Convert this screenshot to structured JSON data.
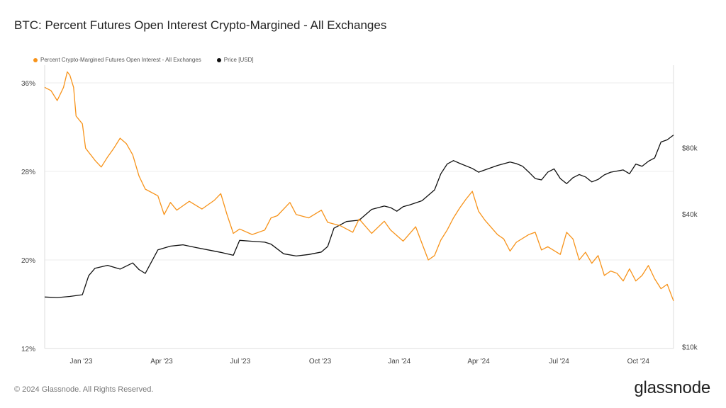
{
  "title": "BTC: Percent Futures Open Interest Crypto-Margined - All Exchanges",
  "footer": "© 2024 Glassnode. All Rights Reserved.",
  "brand": "glassnode",
  "colors": {
    "series_oi": "#f7931a",
    "series_price": "#111111",
    "grid": "#eeeeee",
    "axis": "#dddddd"
  },
  "chart_data": {
    "type": "line",
    "legend": [
      "Percent Crypto-Margined Futures Open Interest - All Exchanges",
      "Price [USD]"
    ],
    "legend_position": "top-left",
    "x_ticks": [
      "Jan '23",
      "Apr '23",
      "Jul '23",
      "Oct '23",
      "Jan '24",
      "Apr '24",
      "Jul '24",
      "Oct '24"
    ],
    "x_range": [
      "Dec '22",
      "Nov '24"
    ],
    "y_left": {
      "ticks": [
        "12%",
        "20%",
        "28%",
        "36%"
      ],
      "min": 12,
      "max": 37.6
    },
    "y_right": {
      "ticks": [
        "$10k",
        "$40k",
        "$80k"
      ],
      "scale": "log",
      "min": 9800,
      "max": 190000
    },
    "grid": true,
    "series": [
      {
        "name": "Percent Crypto-Margined Futures Open Interest - All Exchanges",
        "axis": "left",
        "points": [
          [
            0,
            35.6
          ],
          [
            0.01,
            35.3
          ],
          [
            0.02,
            34.4
          ],
          [
            0.03,
            35.6
          ],
          [
            0.036,
            37.0
          ],
          [
            0.04,
            36.7
          ],
          [
            0.046,
            35.6
          ],
          [
            0.05,
            33.0
          ],
          [
            0.06,
            32.3
          ],
          [
            0.065,
            30.1
          ],
          [
            0.08,
            29.0
          ],
          [
            0.09,
            28.4
          ],
          [
            0.1,
            29.3
          ],
          [
            0.11,
            30.1
          ],
          [
            0.12,
            31.0
          ],
          [
            0.13,
            30.5
          ],
          [
            0.14,
            29.5
          ],
          [
            0.15,
            27.6
          ],
          [
            0.16,
            26.4
          ],
          [
            0.18,
            25.8
          ],
          [
            0.19,
            24.1
          ],
          [
            0.2,
            25.2
          ],
          [
            0.21,
            24.5
          ],
          [
            0.23,
            25.3
          ],
          [
            0.25,
            24.6
          ],
          [
            0.27,
            25.4
          ],
          [
            0.28,
            26.0
          ],
          [
            0.29,
            24.1
          ],
          [
            0.3,
            22.4
          ],
          [
            0.31,
            22.8
          ],
          [
            0.33,
            22.3
          ],
          [
            0.35,
            22.7
          ],
          [
            0.36,
            23.8
          ],
          [
            0.37,
            24.0
          ],
          [
            0.39,
            25.2
          ],
          [
            0.4,
            24.1
          ],
          [
            0.42,
            23.8
          ],
          [
            0.44,
            24.5
          ],
          [
            0.45,
            23.4
          ],
          [
            0.47,
            23.1
          ],
          [
            0.49,
            22.5
          ],
          [
            0.5,
            23.7
          ],
          [
            0.52,
            22.4
          ],
          [
            0.54,
            23.5
          ],
          [
            0.55,
            22.7
          ],
          [
            0.57,
            21.7
          ],
          [
            0.59,
            23.0
          ],
          [
            0.6,
            21.5
          ],
          [
            0.61,
            20.0
          ],
          [
            0.62,
            20.4
          ],
          [
            0.63,
            21.8
          ],
          [
            0.64,
            22.7
          ],
          [
            0.65,
            23.8
          ],
          [
            0.66,
            24.7
          ],
          [
            0.67,
            25.5
          ],
          [
            0.68,
            26.2
          ],
          [
            0.69,
            24.4
          ],
          [
            0.7,
            23.6
          ],
          [
            0.72,
            22.3
          ],
          [
            0.73,
            21.9
          ],
          [
            0.74,
            20.8
          ],
          [
            0.75,
            21.6
          ],
          [
            0.77,
            22.3
          ],
          [
            0.78,
            22.5
          ],
          [
            0.79,
            20.9
          ],
          [
            0.8,
            21.2
          ],
          [
            0.82,
            20.5
          ],
          [
            0.83,
            22.5
          ],
          [
            0.84,
            21.9
          ],
          [
            0.85,
            20.0
          ],
          [
            0.86,
            20.7
          ],
          [
            0.87,
            19.7
          ],
          [
            0.88,
            20.4
          ],
          [
            0.89,
            18.6
          ],
          [
            0.9,
            19.0
          ],
          [
            0.91,
            18.8
          ],
          [
            0.92,
            18.1
          ],
          [
            0.93,
            19.2
          ],
          [
            0.94,
            18.1
          ],
          [
            0.95,
            18.6
          ],
          [
            0.96,
            19.5
          ],
          [
            0.97,
            18.3
          ],
          [
            0.98,
            17.4
          ],
          [
            0.99,
            17.8
          ],
          [
            1.0,
            16.3
          ]
        ]
      },
      {
        "name": "Price [USD]",
        "axis": "right",
        "points": [
          [
            0,
            16800
          ],
          [
            0.02,
            16700
          ],
          [
            0.04,
            16900
          ],
          [
            0.06,
            17200
          ],
          [
            0.07,
            21000
          ],
          [
            0.08,
            22700
          ],
          [
            0.1,
            23400
          ],
          [
            0.12,
            22500
          ],
          [
            0.14,
            24000
          ],
          [
            0.15,
            22400
          ],
          [
            0.16,
            21500
          ],
          [
            0.18,
            27500
          ],
          [
            0.2,
            28600
          ],
          [
            0.22,
            29000
          ],
          [
            0.24,
            28200
          ],
          [
            0.26,
            27500
          ],
          [
            0.28,
            26800
          ],
          [
            0.3,
            26000
          ],
          [
            0.31,
            30400
          ],
          [
            0.33,
            30100
          ],
          [
            0.35,
            29800
          ],
          [
            0.36,
            29200
          ],
          [
            0.38,
            26400
          ],
          [
            0.4,
            25800
          ],
          [
            0.42,
            26200
          ],
          [
            0.44,
            26900
          ],
          [
            0.45,
            28500
          ],
          [
            0.46,
            34500
          ],
          [
            0.48,
            37000
          ],
          [
            0.5,
            37500
          ],
          [
            0.52,
            42000
          ],
          [
            0.54,
            43500
          ],
          [
            0.55,
            42800
          ],
          [
            0.56,
            41200
          ],
          [
            0.57,
            43200
          ],
          [
            0.58,
            44000
          ],
          [
            0.6,
            46000
          ],
          [
            0.62,
            51500
          ],
          [
            0.63,
            61000
          ],
          [
            0.64,
            67500
          ],
          [
            0.65,
            70000
          ],
          [
            0.66,
            68000
          ],
          [
            0.68,
            64500
          ],
          [
            0.69,
            62000
          ],
          [
            0.7,
            63500
          ],
          [
            0.72,
            66500
          ],
          [
            0.74,
            69000
          ],
          [
            0.75,
            67800
          ],
          [
            0.76,
            66000
          ],
          [
            0.77,
            62000
          ],
          [
            0.78,
            58000
          ],
          [
            0.79,
            57200
          ],
          [
            0.8,
            62000
          ],
          [
            0.81,
            64200
          ],
          [
            0.82,
            58000
          ],
          [
            0.83,
            55000
          ],
          [
            0.84,
            58500
          ],
          [
            0.85,
            60500
          ],
          [
            0.86,
            59000
          ],
          [
            0.87,
            56000
          ],
          [
            0.88,
            57500
          ],
          [
            0.89,
            60300
          ],
          [
            0.9,
            62000
          ],
          [
            0.92,
            63500
          ],
          [
            0.93,
            61000
          ],
          [
            0.94,
            67500
          ],
          [
            0.95,
            66000
          ],
          [
            0.96,
            69500
          ],
          [
            0.97,
            72000
          ],
          [
            0.98,
            85000
          ],
          [
            0.99,
            87000
          ],
          [
            1.0,
            91500
          ]
        ]
      }
    ]
  }
}
